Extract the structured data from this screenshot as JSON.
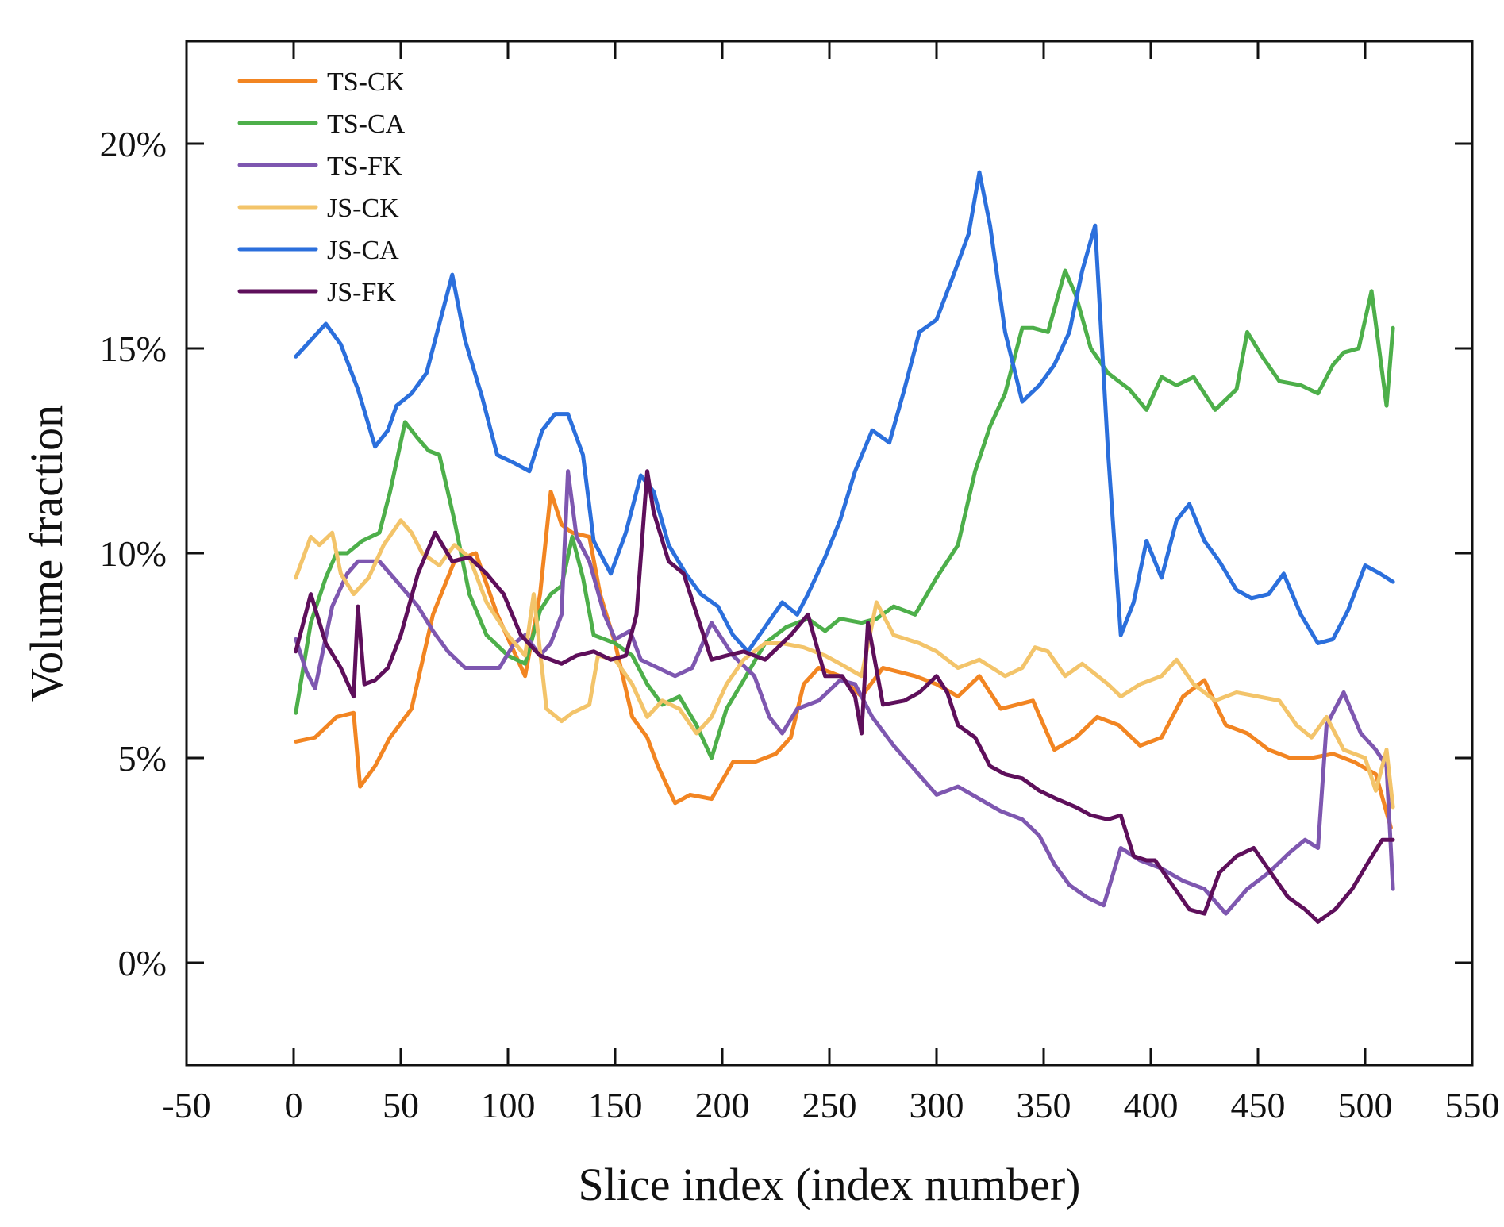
{
  "chart_data": {
    "type": "line",
    "title": "",
    "xlabel": "Slice index (index number)",
    "ylabel": "Volume fraction",
    "xlim": [
      -50,
      550
    ],
    "ylim": [
      -2.5,
      22.5
    ],
    "xticks": [
      -50,
      0,
      50,
      100,
      150,
      200,
      250,
      300,
      350,
      400,
      450,
      500,
      550
    ],
    "xtick_labels": [
      "-50",
      "0",
      "50",
      "100",
      "150",
      "200",
      "250",
      "300",
      "350",
      "400",
      "450",
      "500",
      "550"
    ],
    "yticks": [
      0,
      5,
      10,
      15,
      20
    ],
    "ytick_labels": [
      "0%",
      "5%",
      "10%",
      "15%",
      "20%"
    ],
    "grid": false,
    "legend_position": "top-left",
    "series": [
      {
        "name": "TS-CK",
        "color": "#F28522",
        "x": [
          1,
          10,
          20,
          28,
          31,
          38,
          45,
          55,
          65,
          75,
          85,
          95,
          108,
          115,
          120,
          125,
          130,
          138,
          143,
          150,
          158,
          165,
          170,
          178,
          185,
          195,
          205,
          215,
          225,
          232,
          238,
          245,
          255,
          265,
          275,
          290,
          300,
          310,
          320,
          330,
          345,
          355,
          365,
          375,
          385,
          395,
          405,
          415,
          425,
          435,
          445,
          455,
          465,
          475,
          485,
          495,
          505,
          512
        ],
        "y": [
          5.4,
          5.5,
          6.0,
          6.1,
          4.3,
          4.8,
          5.5,
          6.2,
          8.5,
          9.8,
          10.0,
          8.5,
          7.0,
          9.0,
          11.5,
          10.7,
          10.5,
          10.4,
          9.0,
          7.8,
          6.0,
          5.5,
          4.8,
          3.9,
          4.1,
          4.0,
          4.9,
          4.9,
          5.1,
          5.5,
          6.8,
          7.2,
          7.0,
          6.5,
          7.2,
          7.0,
          6.8,
          6.5,
          7.0,
          6.2,
          6.4,
          5.2,
          5.5,
          6.0,
          5.8,
          5.3,
          5.5,
          6.5,
          6.9,
          5.8,
          5.6,
          5.2,
          5.0,
          5.0,
          5.1,
          4.9,
          4.6,
          3.3
        ]
      },
      {
        "name": "TS-CA",
        "color": "#4DAF4A",
        "x": [
          1,
          8,
          15,
          20,
          25,
          32,
          40,
          45,
          52,
          58,
          63,
          68,
          75,
          82,
          90,
          100,
          108,
          115,
          120,
          125,
          130,
          135,
          140,
          150,
          158,
          165,
          172,
          180,
          188,
          195,
          202,
          210,
          220,
          230,
          240,
          248,
          255,
          265,
          272,
          280,
          290,
          300,
          310,
          318,
          325,
          332,
          340,
          345,
          352,
          360,
          365,
          372,
          380,
          390,
          398,
          405,
          412,
          420,
          430,
          440,
          445,
          452,
          460,
          470,
          478,
          485,
          490,
          497,
          503,
          510,
          513
        ],
        "y": [
          6.1,
          8.3,
          9.4,
          10.0,
          10.0,
          10.3,
          10.5,
          11.5,
          13.2,
          12.8,
          12.5,
          12.4,
          10.8,
          9.0,
          8.0,
          7.5,
          7.3,
          8.6,
          9.0,
          9.2,
          10.4,
          9.4,
          8.0,
          7.8,
          7.5,
          6.8,
          6.3,
          6.5,
          5.8,
          5.0,
          6.2,
          6.9,
          7.8,
          8.2,
          8.4,
          8.1,
          8.4,
          8.3,
          8.4,
          8.7,
          8.5,
          9.4,
          10.2,
          12.0,
          13.1,
          13.9,
          15.5,
          15.5,
          15.4,
          16.9,
          16.3,
          15.0,
          14.4,
          14.0,
          13.5,
          14.3,
          14.1,
          14.3,
          13.5,
          14.0,
          15.4,
          14.8,
          14.2,
          14.1,
          13.9,
          14.6,
          14.9,
          15.0,
          16.4,
          13.6,
          15.5
        ]
      },
      {
        "name": "TS-FK",
        "color": "#7E57B0",
        "x": [
          1,
          6,
          10,
          18,
          25,
          30,
          40,
          50,
          58,
          65,
          72,
          80,
          88,
          96,
          103,
          108,
          115,
          120,
          125,
          128,
          132,
          138,
          145,
          150,
          157,
          162,
          170,
          178,
          186,
          195,
          205,
          215,
          222,
          228,
          235,
          245,
          255,
          262,
          270,
          280,
          290,
          300,
          310,
          320,
          330,
          340,
          348,
          355,
          362,
          370,
          378,
          386,
          395,
          405,
          415,
          425,
          435,
          445,
          455,
          465,
          472,
          478,
          482,
          490,
          498,
          505,
          510,
          513
        ],
        "y": [
          7.9,
          7.1,
          6.7,
          8.7,
          9.5,
          9.8,
          9.8,
          9.2,
          8.7,
          8.1,
          7.6,
          7.2,
          7.2,
          7.2,
          7.8,
          8.0,
          7.5,
          7.8,
          8.5,
          12.0,
          10.4,
          9.8,
          8.5,
          7.9,
          8.1,
          7.4,
          7.2,
          7.0,
          7.2,
          8.3,
          7.5,
          7.0,
          6.0,
          5.6,
          6.2,
          6.4,
          6.9,
          6.8,
          6.0,
          5.3,
          4.7,
          4.1,
          4.3,
          4.0,
          3.7,
          3.5,
          3.1,
          2.4,
          1.9,
          1.6,
          1.4,
          2.8,
          2.5,
          2.3,
          2.0,
          1.8,
          1.2,
          1.8,
          2.2,
          2.7,
          3.0,
          2.8,
          5.8,
          6.6,
          5.6,
          5.2,
          4.8,
          1.8
        ]
      },
      {
        "name": "JS-CK",
        "color": "#F3C46A",
        "x": [
          1,
          8,
          12,
          18,
          22,
          28,
          35,
          42,
          50,
          55,
          60,
          68,
          75,
          82,
          90,
          100,
          108,
          112,
          118,
          125,
          130,
          138,
          142,
          150,
          158,
          165,
          172,
          180,
          188,
          195,
          202,
          210,
          220,
          228,
          238,
          248,
          255,
          265,
          272,
          280,
          292,
          300,
          310,
          320,
          332,
          340,
          346,
          352,
          360,
          368,
          380,
          386,
          395,
          405,
          412,
          420,
          430,
          440,
          450,
          460,
          468,
          475,
          482,
          490,
          500,
          505,
          510,
          513
        ],
        "y": [
          9.4,
          10.4,
          10.2,
          10.5,
          9.5,
          9.0,
          9.4,
          10.2,
          10.8,
          10.5,
          10.0,
          9.7,
          10.2,
          9.9,
          8.8,
          8.0,
          7.5,
          9.0,
          6.2,
          5.9,
          6.1,
          6.3,
          7.5,
          7.4,
          6.8,
          6.0,
          6.4,
          6.2,
          5.6,
          6.0,
          6.8,
          7.4,
          7.8,
          7.8,
          7.7,
          7.5,
          7.3,
          7.0,
          8.8,
          8.0,
          7.8,
          7.6,
          7.2,
          7.4,
          7.0,
          7.2,
          7.7,
          7.6,
          7.0,
          7.3,
          6.8,
          6.5,
          6.8,
          7.0,
          7.4,
          6.8,
          6.4,
          6.6,
          6.5,
          6.4,
          5.8,
          5.5,
          6.0,
          5.2,
          5.0,
          4.2,
          5.2,
          3.8
        ]
      },
      {
        "name": "JS-CA",
        "color": "#2B6FDC",
        "x": [
          1,
          8,
          15,
          22,
          30,
          38,
          44,
          48,
          55,
          62,
          68,
          74,
          80,
          88,
          95,
          103,
          110,
          116,
          122,
          128,
          135,
          140,
          148,
          155,
          162,
          168,
          175,
          183,
          190,
          198,
          205,
          212,
          220,
          228,
          235,
          240,
          248,
          255,
          262,
          270,
          278,
          285,
          292,
          300,
          308,
          315,
          320,
          325,
          332,
          340,
          348,
          355,
          362,
          368,
          374,
          380,
          386,
          392,
          398,
          405,
          412,
          418,
          425,
          432,
          440,
          447,
          455,
          462,
          470,
          478,
          485,
          492,
          500,
          507,
          513
        ],
        "y": [
          14.8,
          15.2,
          15.6,
          15.1,
          14.0,
          12.6,
          13.0,
          13.6,
          13.9,
          14.4,
          15.6,
          16.8,
          15.2,
          13.8,
          12.4,
          12.2,
          12.0,
          13.0,
          13.4,
          13.4,
          12.4,
          10.3,
          9.5,
          10.5,
          11.9,
          11.5,
          10.2,
          9.5,
          9.0,
          8.7,
          8.0,
          7.6,
          8.2,
          8.8,
          8.5,
          9.0,
          9.9,
          10.8,
          12.0,
          13.0,
          12.7,
          14.0,
          15.4,
          15.7,
          16.8,
          17.8,
          19.3,
          18.0,
          15.4,
          13.7,
          14.1,
          14.6,
          15.4,
          16.9,
          18.0,
          12.5,
          8.0,
          8.8,
          10.3,
          9.4,
          10.8,
          11.2,
          10.3,
          9.8,
          9.1,
          8.9,
          9.0,
          9.5,
          8.5,
          7.8,
          7.9,
          8.6,
          9.7,
          9.5,
          9.3
        ]
      },
      {
        "name": "JS-FK",
        "color": "#5E0F5B",
        "x": [
          1,
          8,
          15,
          22,
          28,
          30,
          33,
          38,
          44,
          50,
          58,
          66,
          74,
          82,
          90,
          98,
          106,
          115,
          125,
          132,
          140,
          148,
          155,
          160,
          165,
          168,
          175,
          182,
          190,
          195,
          202,
          210,
          220,
          232,
          240,
          248,
          256,
          262,
          265,
          268,
          275,
          285,
          292,
          300,
          305,
          310,
          318,
          325,
          332,
          340,
          348,
          356,
          365,
          372,
          380,
          386,
          392,
          398,
          402,
          410,
          418,
          425,
          432,
          440,
          448,
          456,
          464,
          472,
          478,
          486,
          494,
          502,
          508,
          513
        ],
        "y": [
          7.6,
          9.0,
          7.8,
          7.2,
          6.5,
          8.7,
          6.8,
          6.9,
          7.2,
          8.0,
          9.5,
          10.5,
          9.8,
          9.9,
          9.5,
          9.0,
          8.0,
          7.5,
          7.3,
          7.5,
          7.6,
          7.4,
          7.5,
          8.5,
          12.0,
          11.0,
          9.8,
          9.5,
          8.2,
          7.4,
          7.5,
          7.6,
          7.4,
          8.0,
          8.5,
          7.0,
          7.0,
          6.5,
          5.6,
          8.3,
          6.3,
          6.4,
          6.6,
          7.0,
          6.6,
          5.8,
          5.5,
          4.8,
          4.6,
          4.5,
          4.2,
          4.0,
          3.8,
          3.6,
          3.5,
          3.6,
          2.6,
          2.5,
          2.5,
          1.9,
          1.3,
          1.2,
          2.2,
          2.6,
          2.8,
          2.2,
          1.6,
          1.3,
          1.0,
          1.3,
          1.8,
          2.5,
          3.0,
          3.0
        ]
      }
    ]
  }
}
